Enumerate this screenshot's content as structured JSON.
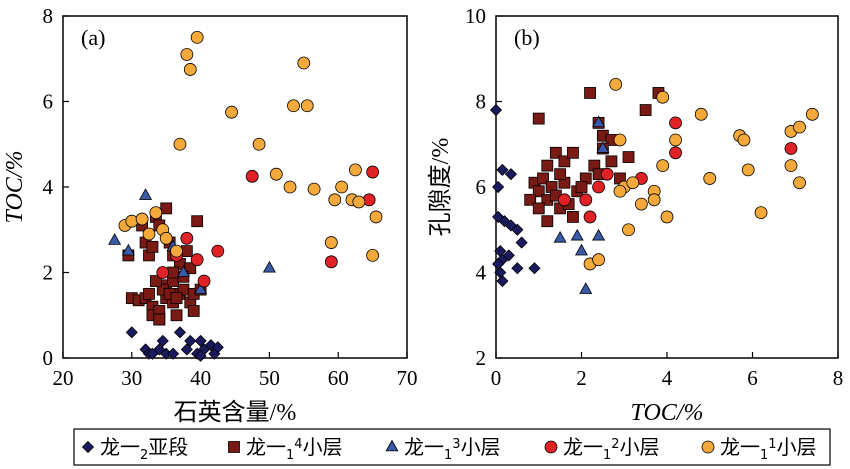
{
  "series_styles": [
    {
      "name": "龙一₂亚段",
      "legend_parts": [
        "龙一",
        "2",
        "亚段"
      ],
      "marker": "diamond",
      "color": "#1a1a5e",
      "stroke": "#000000"
    },
    {
      "name": "龙一₁⁴小层",
      "legend_parts": [
        "龙一",
        "1",
        "4",
        "小层"
      ],
      "marker": "square",
      "color": "#7a1a14",
      "stroke": "#000000"
    },
    {
      "name": "龙一₁³小层",
      "legend_parts": [
        "龙一",
        "1",
        "3",
        "小层"
      ],
      "marker": "triangle",
      "color": "#3a5aa8",
      "stroke": "#000000"
    },
    {
      "name": "龙一₁²小层",
      "legend_parts": [
        "龙一",
        "1",
        "2",
        "小层"
      ],
      "marker": "circle",
      "color": "#e02226",
      "stroke": "#000000"
    },
    {
      "name": "龙一₁¹小层",
      "legend_parts": [
        "龙一",
        "1",
        "1",
        "小层"
      ],
      "marker": "circle",
      "color": "#f4a93a",
      "stroke": "#000000"
    }
  ],
  "chart_data": [
    {
      "type": "scatter",
      "panel_label": "(a)",
      "xlabel": "石英含量/%",
      "ylabel": "TOC/%",
      "xlim": [
        20,
        70
      ],
      "ylim": [
        0,
        8
      ],
      "xticks": [
        20,
        30,
        40,
        50,
        60,
        70
      ],
      "yticks": [
        0,
        2,
        4,
        6,
        8
      ],
      "grid": false,
      "series": [
        {
          "name": "龙一₂亚段",
          "points": [
            [
              30.0,
              0.6
            ],
            [
              32.0,
              0.2
            ],
            [
              32.5,
              0.1
            ],
            [
              33.0,
              0.1
            ],
            [
              34.0,
              0.2
            ],
            [
              35.0,
              0.1
            ],
            [
              34.5,
              0.4
            ],
            [
              36.0,
              0.1
            ],
            [
              37.0,
              0.6
            ],
            [
              38.0,
              0.2
            ],
            [
              38.5,
              0.4
            ],
            [
              39.5,
              0.1
            ],
            [
              40.0,
              0.4
            ],
            [
              40.5,
              0.2
            ],
            [
              41.5,
              0.3
            ],
            [
              42.0,
              0.1
            ],
            [
              42.5,
              0.25
            ],
            [
              40.0,
              0.05
            ]
          ]
        },
        {
          "name": "龙一₁⁴小层",
          "points": [
            [
              31.5,
              3.1
            ],
            [
              32.0,
              2.7
            ],
            [
              32.5,
              2.4
            ],
            [
              33.0,
              2.6
            ],
            [
              33.5,
              3.3
            ],
            [
              34.0,
              3.1
            ],
            [
              35.0,
              3.5
            ],
            [
              35.5,
              2.7
            ],
            [
              36.0,
              2.4
            ],
            [
              37.0,
              2.2
            ],
            [
              38.0,
              2.5
            ],
            [
              38.5,
              2.1
            ],
            [
              39.5,
              3.2
            ],
            [
              29.5,
              2.4
            ],
            [
              30.0,
              1.4
            ],
            [
              31.0,
              1.35
            ],
            [
              32.0,
              1.4
            ],
            [
              33.0,
              1.2
            ],
            [
              33.0,
              1.0
            ],
            [
              34.0,
              1.1
            ],
            [
              35.0,
              1.4
            ],
            [
              36.0,
              1.3
            ],
            [
              37.0,
              1.5
            ],
            [
              37.5,
              1.6
            ],
            [
              38.5,
              1.3
            ],
            [
              39.0,
              1.5
            ],
            [
              40.0,
              1.6
            ],
            [
              34.0,
              0.9
            ],
            [
              36.5,
              1.0
            ],
            [
              35.0,
              1.7
            ],
            [
              36.0,
              1.8
            ],
            [
              34.5,
              1.6
            ],
            [
              33.5,
              1.8
            ],
            [
              35.5,
              1.5
            ],
            [
              37.5,
              1.9
            ],
            [
              39.0,
              1.1
            ],
            [
              32.5,
              1.5
            ],
            [
              36.0,
              2.0
            ],
            [
              34.0,
              0.9
            ],
            [
              36.5,
              1.4
            ]
          ]
        },
        {
          "name": "龙一₁³小层",
          "points": [
            [
              27.5,
              2.75
            ],
            [
              29.5,
              2.5
            ],
            [
              32.0,
              3.8
            ],
            [
              36.0,
              2.6
            ],
            [
              37.5,
              2.0
            ],
            [
              40.0,
              1.6
            ],
            [
              50.0,
              2.1
            ]
          ]
        },
        {
          "name": "龙一₁²小层",
          "points": [
            [
              34.5,
              2.0
            ],
            [
              36.5,
              2.4
            ],
            [
              38.0,
              2.8
            ],
            [
              39.5,
              2.3
            ],
            [
              40.5,
              1.8
            ],
            [
              42.5,
              2.5
            ],
            [
              47.5,
              4.25
            ],
            [
              59.0,
              2.25
            ],
            [
              64.5,
              3.7
            ],
            [
              65.0,
              4.35
            ]
          ]
        },
        {
          "name": "龙一₁¹小层",
          "points": [
            [
              29.0,
              3.1
            ],
            [
              30.0,
              3.2
            ],
            [
              31.5,
              3.25
            ],
            [
              32.5,
              2.9
            ],
            [
              33.5,
              3.4
            ],
            [
              34.5,
              3.0
            ],
            [
              35.0,
              2.8
            ],
            [
              36.5,
              2.5
            ],
            [
              37.0,
              5.0
            ],
            [
              38.0,
              7.1
            ],
            [
              38.5,
              6.75
            ],
            [
              39.5,
              7.5
            ],
            [
              44.5,
              5.75
            ],
            [
              48.5,
              5.0
            ],
            [
              51.0,
              4.3
            ],
            [
              53.0,
              4.0
            ],
            [
              53.5,
              5.9
            ],
            [
              55.0,
              6.9
            ],
            [
              55.5,
              5.9
            ],
            [
              56.5,
              3.95
            ],
            [
              59.0,
              2.7
            ],
            [
              59.5,
              3.7
            ],
            [
              60.5,
              4.0
            ],
            [
              62.0,
              3.7
            ],
            [
              62.5,
              4.4
            ],
            [
              63.0,
              3.65
            ],
            [
              65.5,
              3.3
            ],
            [
              65.0,
              2.4
            ]
          ]
        }
      ]
    },
    {
      "type": "scatter",
      "panel_label": "(b)",
      "xlabel": "TOC/%",
      "ylabel": "孔隙度/%",
      "xlim": [
        0,
        8
      ],
      "ylim": [
        2,
        10
      ],
      "xticks": [
        0,
        2,
        4,
        6,
        8
      ],
      "yticks": [
        2,
        4,
        6,
        8,
        10
      ],
      "grid": false,
      "series": [
        {
          "name": "龙一₂亚段",
          "points": [
            [
              0.0,
              7.8
            ],
            [
              0.05,
              6.0
            ],
            [
              0.15,
              6.4
            ],
            [
              0.35,
              6.3
            ],
            [
              0.05,
              5.3
            ],
            [
              0.2,
              5.2
            ],
            [
              0.35,
              5.1
            ],
            [
              0.5,
              5.0
            ],
            [
              0.1,
              4.5
            ],
            [
              0.15,
              4.3
            ],
            [
              0.3,
              4.4
            ],
            [
              0.05,
              4.2
            ],
            [
              0.1,
              4.0
            ],
            [
              0.5,
              4.1
            ],
            [
              0.9,
              4.1
            ],
            [
              0.6,
              4.7
            ],
            [
              0.15,
              3.8
            ]
          ]
        },
        {
          "name": "龙一₁⁴小层",
          "points": [
            [
              1.0,
              7.6
            ],
            [
              1.2,
              6.5
            ],
            [
              1.4,
              6.8
            ],
            [
              1.6,
              6.6
            ],
            [
              1.8,
              6.8
            ],
            [
              2.2,
              8.2
            ],
            [
              2.4,
              7.5
            ],
            [
              2.5,
              7.2
            ],
            [
              2.7,
              7.1
            ],
            [
              3.1,
              6.7
            ],
            [
              3.5,
              7.8
            ],
            [
              3.8,
              8.2
            ],
            [
              0.9,
              6.1
            ],
            [
              1.0,
              5.9
            ],
            [
              1.1,
              6.2
            ],
            [
              1.2,
              5.7
            ],
            [
              1.3,
              6.0
            ],
            [
              1.4,
              5.8
            ],
            [
              1.5,
              5.5
            ],
            [
              1.6,
              6.1
            ],
            [
              1.7,
              5.6
            ],
            [
              1.8,
              5.3
            ],
            [
              1.9,
              5.9
            ],
            [
              2.1,
              6.2
            ],
            [
              2.3,
              6.5
            ],
            [
              2.5,
              6.9
            ],
            [
              2.7,
              6.6
            ],
            [
              2.9,
              6.2
            ],
            [
              0.8,
              5.7
            ],
            [
              1.0,
              5.5
            ],
            [
              1.2,
              5.2
            ],
            [
              1.5,
              6.3
            ],
            [
              2.0,
              6.0
            ],
            [
              2.4,
              6.3
            ]
          ]
        },
        {
          "name": "龙一₁³小层",
          "points": [
            [
              2.4,
              7.5
            ],
            [
              2.5,
              6.9
            ],
            [
              1.5,
              4.8
            ],
            [
              1.9,
              4.85
            ],
            [
              2.4,
              4.85
            ],
            [
              2.0,
              4.5
            ],
            [
              2.1,
              3.6
            ]
          ]
        },
        {
          "name": "龙一₁²小层",
          "points": [
            [
              1.6,
              5.7
            ],
            [
              2.1,
              5.7
            ],
            [
              2.2,
              5.3
            ],
            [
              2.4,
              6.0
            ],
            [
              2.6,
              6.3
            ],
            [
              3.4,
              6.2
            ],
            [
              4.2,
              6.8
            ],
            [
              4.2,
              7.5
            ],
            [
              6.9,
              6.9
            ]
          ]
        },
        {
          "name": "龙一₁¹小层",
          "points": [
            [
              2.2,
              4.2
            ],
            [
              2.8,
              8.4
            ],
            [
              2.9,
              7.1
            ],
            [
              3.0,
              6.0
            ],
            [
              3.1,
              5.0
            ],
            [
              3.2,
              6.1
            ],
            [
              3.4,
              5.6
            ],
            [
              3.7,
              5.9
            ],
            [
              3.9,
              8.1
            ],
            [
              3.9,
              6.5
            ],
            [
              4.0,
              5.3
            ],
            [
              4.2,
              7.1
            ],
            [
              4.8,
              7.7
            ],
            [
              5.0,
              6.2
            ],
            [
              5.7,
              7.2
            ],
            [
              5.8,
              7.1
            ],
            [
              5.9,
              6.4
            ],
            [
              6.2,
              5.4
            ],
            [
              6.9,
              7.3
            ],
            [
              6.9,
              6.5
            ],
            [
              7.1,
              7.4
            ],
            [
              7.1,
              6.1
            ],
            [
              7.4,
              7.7
            ],
            [
              3.7,
              5.7
            ],
            [
              2.9,
              5.9
            ],
            [
              2.4,
              4.3
            ]
          ]
        }
      ]
    }
  ]
}
